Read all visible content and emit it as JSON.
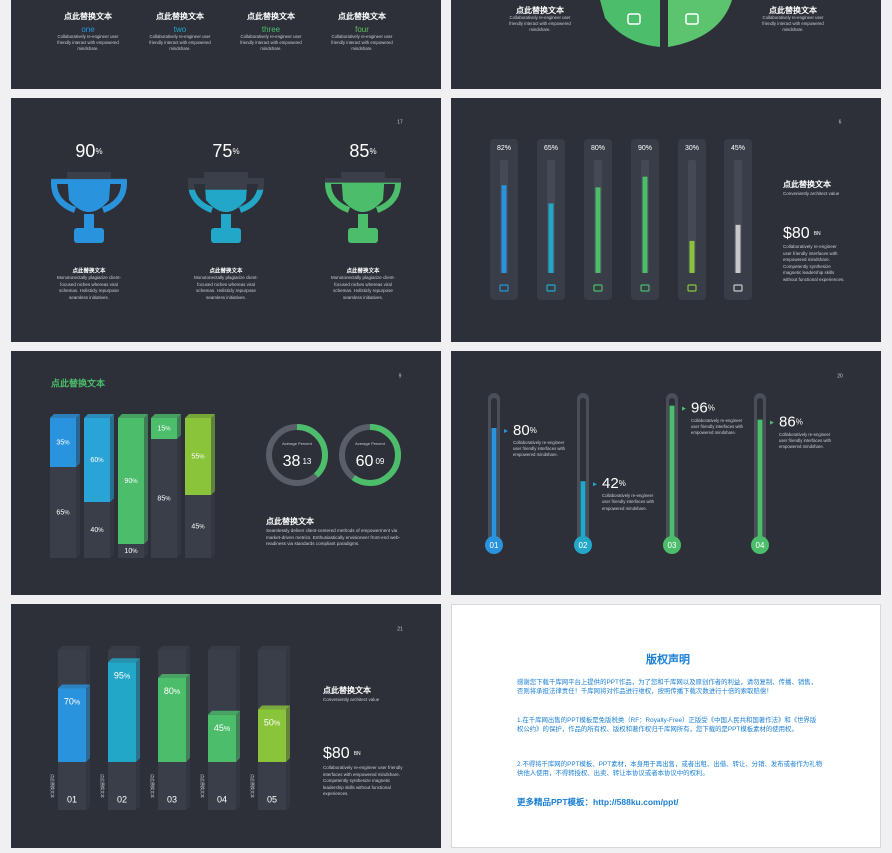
{
  "slide_a": {
    "items": [
      {
        "title": "点此替换文本",
        "label": "one",
        "color": "#2994dd",
        "text": "Collaboratively re-engineer user friendly interact with empowered mindshare."
      },
      {
        "title": "点此替换文本",
        "label": "two",
        "color": "#22a7c9",
        "text": "Collaboratively re-engineer user friendly interact with empowered mindshare."
      },
      {
        "title": "点此替换文本",
        "label": "three",
        "color": "#4cbd6b",
        "text": "Collaboratively re-engineer user friendly interact with empowered mindshare."
      },
      {
        "title": "点此替换文本",
        "label": "four",
        "color": "#5cc05a",
        "text": "Collaboratively re-engineer user friendly interact with empowered mindshare."
      }
    ]
  },
  "slide_b": {
    "items": [
      {
        "title": "点此替换文本",
        "text": "Collaboratively re-engineer user friendly interact with empowered mindshare."
      },
      {
        "title": "点此替换文本",
        "text": "Collaboratively re-engineer user friendly interact with empowered mindshare."
      }
    ]
  },
  "slide_c": {
    "page": "17",
    "unit": "%",
    "trophies": [
      {
        "value": 90,
        "color": "#2994dd",
        "title": "点此替换文本",
        "text": "Monotonectally plagiarize client-focused niches whereas viral schemas. Holisticly repurpose seamless initiatives."
      },
      {
        "value": 75,
        "color": "#22a7c9",
        "title": "点此替换文本",
        "text": "Monotonectally plagiarize client-focused niches whereas viral schemas. Holisticly repurpose seamless initiatives."
      },
      {
        "value": 85,
        "color": "#4cbd6b",
        "title": "点此替换文本",
        "text": "Monotonectally plagiarize client-focused niches whereas viral schemas. Holisticly repurpose seamless initiatives."
      }
    ]
  },
  "slide_d": {
    "page": "6",
    "unit": "%",
    "bars": [
      {
        "value": 82,
        "color": "#2994dd"
      },
      {
        "value": 65,
        "color": "#22a7c9"
      },
      {
        "value": 80,
        "color": "#4cbd6b"
      },
      {
        "value": 90,
        "color": "#4cbd6b"
      },
      {
        "value": 30,
        "color": "#8ac43a"
      },
      {
        "value": 45,
        "color": "#c8c8c8"
      }
    ],
    "title": "点此替换文本",
    "subtitle": "Conveniently architect value",
    "amount": "$80",
    "amount_unit": "BN",
    "text": "Collaboratively re-engineer user friendly interfaces with empowered mindshare. Competently synthesize magnetic leadership skills without functional experiences."
  },
  "slide_e": {
    "page": "9",
    "title": "点此替换文本",
    "unit": "%",
    "columns": [
      {
        "top": 35,
        "bottom": 65,
        "color": "#2994dd"
      },
      {
        "top": 60,
        "bottom": 40,
        "color": "#2aa3d6"
      },
      {
        "top": 90,
        "bottom": 10,
        "color": "#4cbd6b"
      },
      {
        "top": 15,
        "bottom": 85,
        "color": "#4cbd6b"
      },
      {
        "top": 55,
        "bottom": 45,
        "color": "#8ac43a"
      }
    ],
    "donuts": [
      {
        "label": "Average Percent",
        "whole": 38,
        "fraction": "13",
        "color": "#4cbd6b"
      },
      {
        "label": "Average Percent",
        "whole": 60,
        "fraction": "09",
        "color": "#4cbd6b"
      }
    ],
    "heading": "点此替换文本",
    "text": "Seamlessly deliver client-centered methods of empowerment via market-driven metrics. Enthusiastically envisioneer front-end web-readiness via standards compliant paradigms."
  },
  "slide_f": {
    "page": "20",
    "unit": "%",
    "thermos": [
      {
        "value": 80,
        "index": "01",
        "color": "#2994dd",
        "text": "Collaboratively re-engineer user friendly interfaces with empowered mindshare."
      },
      {
        "value": 42,
        "index": "02",
        "color": "#22a7c9",
        "text": "Collaboratively re-engineer user friendly interfaces with empowered mindshare."
      },
      {
        "value": 96,
        "index": "03",
        "color": "#4cbd6b",
        "text": "Collaboratively re-engineer user friendly interfaces with empowered mindshare."
      },
      {
        "value": 86,
        "index": "04",
        "color": "#4cbd6b",
        "text": "Collaboratively re-engineer user friendly interfaces with empowered mindshare."
      }
    ]
  },
  "slide_g": {
    "page": "21",
    "unit": "%",
    "columns": [
      {
        "value": 70,
        "index": "01",
        "label": "点此替换文本",
        "color": "#2994dd"
      },
      {
        "value": 95,
        "index": "02",
        "label": "点此替换文本",
        "color": "#22a7c9"
      },
      {
        "value": 80,
        "index": "03",
        "label": "点此替换文本",
        "color": "#4cbd6b"
      },
      {
        "value": 45,
        "index": "04",
        "label": "点此替换文本",
        "color": "#4cbd6b"
      },
      {
        "value": 50,
        "index": "05",
        "label": "点此替换文本",
        "color": "#8ac43a"
      }
    ],
    "title": "点此替换文本",
    "subtitle": "Conveniently architect value",
    "amount": "$80",
    "amount_unit": "BN",
    "text": "Collaboratively re-engineer user friendly interfaces with empowered mindshare. Competently synthesize magnetic leadership skills without functional experiences."
  },
  "slide_h": {
    "title": "版权声明",
    "paragraphs": [
      "感谢您下载千库网平台上提供的PPT作品，为了您和千库网以及原创作者的利益，请勿复制、传播、销售，否则将承担法律责任！千库网将对作品进行维权，按照传播下载次数进行十倍的索取赔偿！",
      "1.在千库网出售的PPT模板是免版税类（RF：Royalty-Free）正版受《中国人民共和国著作法》和《世界版权公约》的保护，作品的所有权、版权和著作权归千库网所有，您下载的是PPT模板素材的使用权。",
      "2.不得将千库网的PPT模板、PPT素材，本身用于再出售，或者出租、出借、转让、分销、发布或者作为礼物供他人使用，不得转授权、出卖、转让本协议或者本协议中的权利。"
    ],
    "link": "更多精品PPT模板：http://588ku.com/ppt/"
  }
}
